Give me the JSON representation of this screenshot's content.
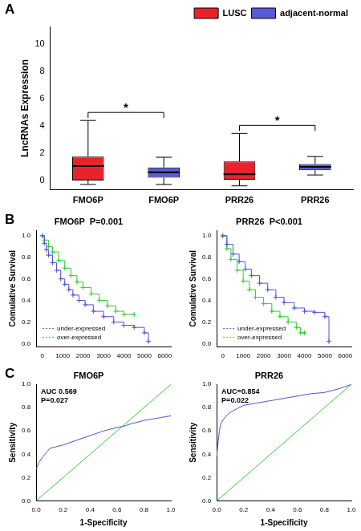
{
  "chart_data": [
    {
      "panel": "A",
      "type": "box",
      "y_label": "LncRNAs Expression",
      "categories": [
        "FMO6P",
        "FMO6P",
        "PRR26",
        "PRR26"
      ],
      "series": [
        {
          "name": "LUSC",
          "color": "#e8232b",
          "values": [
            {
              "min": -0.3,
              "q1": 0.0,
              "median": 1.05,
              "q3": 1.75,
              "max": 4.4
            },
            null,
            {
              "min": -0.4,
              "q1": 0.05,
              "median": 0.45,
              "q3": 1.4,
              "max": 3.45
            },
            null
          ]
        },
        {
          "name": "adjacent-normal",
          "color": "#5a5ad8",
          "values": [
            null,
            {
              "min": -0.3,
              "q1": 0.2,
              "median": 0.6,
              "q3": 0.95,
              "max": 1.7
            },
            null,
            {
              "min": 0.4,
              "q1": 0.75,
              "median": 1.0,
              "q3": 1.2,
              "max": 1.75
            }
          ]
        }
      ],
      "ylim": [
        -0.7,
        11.3
      ],
      "yticks": [
        0,
        2,
        4,
        6,
        8,
        10
      ],
      "grid": false,
      "legend": "upper right",
      "significance": [
        {
          "pair": [
            0,
            1
          ],
          "label": "*"
        },
        {
          "pair": [
            2,
            3
          ],
          "label": "*"
        }
      ]
    },
    {
      "panel": "B",
      "type": "line",
      "line_style": "steps",
      "marker": "cross",
      "title": "FMO6P  P=0.001",
      "y_label": "Comulative Survival",
      "series": [
        {
          "name": "under-expressed",
          "color": "#5050d0",
          "x": [
            0,
            100,
            200,
            300,
            500,
            700,
            900,
            1100,
            1300,
            1500,
            1800,
            2100,
            2500,
            3000,
            3500,
            4000,
            4500,
            5000,
            5200
          ],
          "values": [
            1.0,
            0.93,
            0.87,
            0.82,
            0.75,
            0.68,
            0.6,
            0.55,
            0.5,
            0.45,
            0.4,
            0.36,
            0.3,
            0.25,
            0.2,
            0.17,
            0.15,
            0.1,
            0.02
          ]
        },
        {
          "name": "over-expressed",
          "color": "#33cc33",
          "x": [
            0,
            100,
            300,
            500,
            800,
            1100,
            1400,
            1700,
            2000,
            2400,
            2800,
            3200,
            3600,
            4000,
            4500
          ],
          "values": [
            1.0,
            0.96,
            0.9,
            0.85,
            0.77,
            0.7,
            0.63,
            0.57,
            0.52,
            0.46,
            0.4,
            0.35,
            0.3,
            0.27,
            0.27
          ]
        }
      ],
      "xlim": [
        -300,
        6300
      ],
      "xticks": [
        0,
        1000,
        2000,
        3000,
        4000,
        5000,
        6000
      ],
      "ylim": [
        -0.03,
        1.05
      ],
      "yticks": [
        {
          "value": 0,
          "label": "0.0"
        },
        {
          "value": 0.2,
          "label": "0.2"
        },
        {
          "value": 0.4,
          "label": "0.4"
        },
        {
          "value": 0.6,
          "label": "0.6"
        },
        {
          "value": 0.8,
          "label": "0.8"
        },
        {
          "value": 1,
          "label": "1.0"
        }
      ],
      "grid": false,
      "legend": "lower left"
    },
    {
      "type": "line",
      "line_style": "steps",
      "marker": "cross",
      "title": "PRR26  P<0.001",
      "y_label": "Comulative Survival",
      "series": [
        {
          "name": "under-expressed",
          "color": "#5050d0",
          "x": [
            0,
            200,
            500,
            800,
            1100,
            1400,
            1800,
            2200,
            2600,
            3000,
            3500,
            4000,
            4500,
            5000,
            5200
          ],
          "values": [
            1.0,
            0.92,
            0.83,
            0.76,
            0.69,
            0.63,
            0.56,
            0.5,
            0.43,
            0.38,
            0.33,
            0.3,
            0.29,
            0.25,
            0.02
          ]
        },
        {
          "name": "over-expressed",
          "color": "#33cc33",
          "x": [
            0,
            200,
            400,
            700,
            1000,
            1300,
            1600,
            2000,
            2400,
            2800,
            3200,
            3600,
            3800,
            4000
          ],
          "values": [
            1.0,
            0.88,
            0.78,
            0.68,
            0.58,
            0.5,
            0.43,
            0.37,
            0.3,
            0.25,
            0.2,
            0.15,
            0.1,
            0.1
          ]
        }
      ],
      "xlim": [
        -300,
        6300
      ],
      "xticks": [
        0,
        1000,
        2000,
        3000,
        4000,
        5000,
        6000
      ],
      "ylim": [
        -0.03,
        1.05
      ],
      "yticks": [
        {
          "value": 0,
          "label": "0.0"
        },
        {
          "value": 0.2,
          "label": "0.2"
        },
        {
          "value": 0.4,
          "label": "0.4"
        },
        {
          "value": 0.6,
          "label": "0.6"
        },
        {
          "value": 0.8,
          "label": "0.8"
        },
        {
          "value": 1,
          "label": "1.0"
        }
      ],
      "grid": false,
      "legend": "lower left"
    },
    {
      "panel": "C",
      "type": "line",
      "title": "FMO6P",
      "x_label": "1-Specificity",
      "y_label": "Sensitivity",
      "annotations": [
        "AUC 0.569",
        "P=0.027"
      ],
      "series": [
        {
          "color": "#5050d0",
          "x": [
            0,
            0.02,
            0.05,
            0.08,
            0.1,
            0.2,
            0.3,
            0.4,
            0.5,
            0.6,
            0.65,
            0.7,
            0.8,
            0.9,
            1.0
          ],
          "values": [
            0.27,
            0.33,
            0.38,
            0.42,
            0.45,
            0.48,
            0.52,
            0.56,
            0.6,
            0.63,
            0.64,
            0.66,
            0.69,
            0.71,
            0.73
          ]
        },
        {
          "color": "#33cc33",
          "x": [
            0,
            1
          ],
          "values": [
            0,
            1
          ]
        }
      ],
      "xlim": [
        0,
        1
      ],
      "xticks": [
        {
          "value": 0,
          "label": "0.0"
        },
        {
          "value": 0.2,
          "label": "0.2"
        },
        {
          "value": 0.4,
          "label": "0.4"
        },
        {
          "value": 0.6,
          "label": "0.6"
        },
        {
          "value": 0.8,
          "label": "0.8"
        },
        {
          "value": 1,
          "label": "1.0"
        }
      ],
      "ylim": [
        0,
        1
      ],
      "yticks": [
        {
          "value": 0,
          "label": "0.0"
        },
        {
          "value": 0.2,
          "label": "0.2"
        },
        {
          "value": 0.4,
          "label": "0.4"
        },
        {
          "value": 0.6,
          "label": "0.6"
        },
        {
          "value": 0.8,
          "label": "0.8"
        },
        {
          "value": 1,
          "label": "1.0"
        }
      ],
      "grid": false
    },
    {
      "type": "line",
      "title": "PRR26",
      "x_label": "1-Specificity",
      "y_label": "Sensitivity",
      "annotations": [
        "AUC=0.854",
        "P=0.022"
      ],
      "series": [
        {
          "color": "#5050d0",
          "x": [
            0,
            0.01,
            0.02,
            0.03,
            0.05,
            0.08,
            0.1,
            0.15,
            0.2,
            0.3,
            0.4,
            0.5,
            0.6,
            0.7,
            0.8,
            0.9,
            1.0
          ],
          "values": [
            0.38,
            0.5,
            0.6,
            0.66,
            0.7,
            0.74,
            0.76,
            0.79,
            0.82,
            0.84,
            0.86,
            0.88,
            0.9,
            0.92,
            0.93,
            0.96,
            1.0
          ]
        },
        {
          "color": "#33cc33",
          "x": [
            0,
            1
          ],
          "values": [
            0,
            1
          ]
        }
      ],
      "xlim": [
        0,
        1
      ],
      "xticks": [
        {
          "value": 0,
          "label": "0.0"
        },
        {
          "value": 0.2,
          "label": "0.2"
        },
        {
          "value": 0.4,
          "label": "0.4"
        },
        {
          "value": 0.6,
          "label": "0.6"
        },
        {
          "value": 0.8,
          "label": "0.8"
        },
        {
          "value": 1,
          "label": "1.0"
        }
      ],
      "ylim": [
        0,
        1
      ],
      "yticks": [
        {
          "value": 0,
          "label": "0.0"
        },
        {
          "value": 0.2,
          "label": "0.2"
        },
        {
          "value": 0.4,
          "label": "0.4"
        },
        {
          "value": 0.6,
          "label": "0.6"
        },
        {
          "value": 0.8,
          "label": "0.8"
        },
        {
          "value": 1,
          "label": "1.0"
        }
      ],
      "grid": false
    }
  ]
}
